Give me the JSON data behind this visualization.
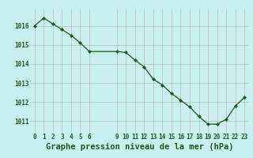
{
  "x": [
    0,
    1,
    2,
    3,
    4,
    5,
    6,
    9,
    10,
    11,
    12,
    13,
    14,
    15,
    16,
    17,
    18,
    19,
    20,
    21,
    22,
    23
  ],
  "y": [
    1016.0,
    1016.4,
    1016.1,
    1015.8,
    1015.5,
    1015.1,
    1014.65,
    1014.65,
    1014.6,
    1014.2,
    1013.85,
    1013.2,
    1012.9,
    1012.45,
    1012.1,
    1011.75,
    1011.25,
    1010.85,
    1010.85,
    1011.1,
    1011.8,
    1012.25
  ],
  "line_color": "#1a5c1a",
  "marker_color": "#1a5c1a",
  "bg_color": "#c8f0f0",
  "grid_color": "#c8b4b4",
  "xlabel": "Graphe pression niveau de la mer (hPa)",
  "xlabel_color": "#1a5c1a",
  "tick_color": "#1a5c1a",
  "ylim": [
    1010.4,
    1016.85
  ],
  "xlim": [
    -0.5,
    23.5
  ],
  "yticks": [
    1011,
    1012,
    1013,
    1014,
    1015,
    1016
  ],
  "xticks": [
    0,
    1,
    2,
    3,
    4,
    5,
    6,
    9,
    10,
    11,
    12,
    13,
    14,
    15,
    16,
    17,
    18,
    19,
    20,
    21,
    22,
    23
  ],
  "xtick_labels": [
    "0",
    "1",
    "2",
    "3",
    "4",
    "5",
    "6",
    "9",
    "10",
    "11",
    "12",
    "13",
    "14",
    "15",
    "16",
    "17",
    "18",
    "19",
    "20",
    "21",
    "22",
    "23"
  ],
  "font_size_ticks": 5.5,
  "font_size_xlabel": 7.5
}
